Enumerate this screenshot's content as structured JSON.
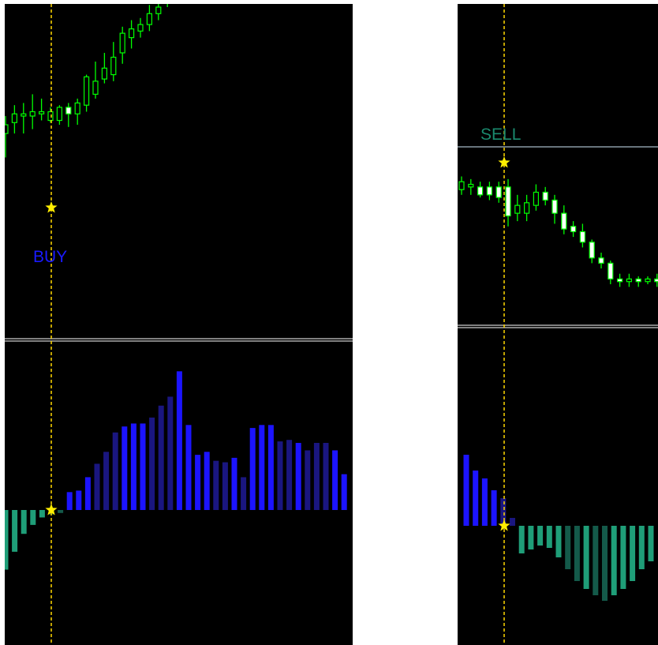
{
  "colors": {
    "background": "#000000",
    "candle": "#00ff00",
    "candle_body_bull": "#000000",
    "candle_body_bear": "#ffffff",
    "signal_line": "#ffd700",
    "signal_star": "#ffee00",
    "buy_label": "#1a1aff",
    "sell_label": "#1a8a6e",
    "hist_pos_strong": "#1c14ff",
    "hist_pos_weak": "#1a1680",
    "hist_neg_strong": "#1f9e78",
    "hist_neg_weak": "#145a4a",
    "separator": "#cccccc",
    "level_line": "#8a9aa6"
  },
  "signals": {
    "buy": {
      "label": "BUY"
    },
    "sell": {
      "label": "SELL"
    }
  },
  "chart_data": [
    {
      "id": "buy-price",
      "type": "candlestick",
      "signal_index": 7,
      "ylim": [
        0,
        100
      ],
      "candles": [
        [
          42,
          46,
          31,
          50
        ],
        [
          47,
          51,
          42,
          55
        ],
        [
          50,
          51,
          42,
          56
        ],
        [
          50,
          52,
          44,
          60
        ],
        [
          51,
          52,
          48,
          58
        ],
        [
          48,
          52,
          47,
          54
        ],
        [
          48,
          54,
          46,
          55
        ],
        [
          54,
          51,
          45,
          56
        ],
        [
          51,
          56,
          46,
          58
        ],
        [
          55,
          68,
          52,
          69
        ],
        [
          60,
          66,
          58,
          75
        ],
        [
          67,
          72,
          65,
          79
        ],
        [
          69,
          77,
          66,
          84
        ],
        [
          79,
          88,
          74,
          91
        ],
        [
          86,
          90,
          81,
          94
        ],
        [
          89,
          92,
          86,
          95
        ],
        [
          92,
          97,
          89,
          101
        ],
        [
          97,
          100,
          94,
          103
        ],
        [
          102,
          103,
          100,
          104
        ]
      ]
    },
    {
      "id": "buy-histogram",
      "type": "bar",
      "signal_index": 6,
      "ylim": [
        -80,
        100
      ],
      "values": [
        -40,
        -28,
        -16,
        -10,
        -5,
        -3,
        -2,
        12,
        13,
        22,
        31,
        39,
        52,
        56,
        58,
        58,
        62,
        70,
        76,
        93,
        57,
        37,
        39,
        33,
        32,
        35,
        22,
        55,
        57,
        57,
        46,
        47,
        45,
        40,
        45,
        45,
        40,
        24
      ],
      "strength": [
        "s",
        "s",
        "s",
        "s",
        "s",
        "w",
        "w",
        "s",
        "s",
        "s",
        "w",
        "w",
        "w",
        "s",
        "s",
        "s",
        "w",
        "w",
        "w",
        "s",
        "s",
        "s",
        "s",
        "w",
        "w",
        "s",
        "w",
        "s",
        "s",
        "s",
        "w",
        "w",
        "s",
        "w",
        "w",
        "w",
        "s",
        "s"
      ]
    },
    {
      "id": "sell-price",
      "type": "candlestick",
      "signal_index": 5,
      "level": 55,
      "ylim": [
        0,
        100
      ],
      "candles": [
        [
          48,
          51,
          46,
          53
        ],
        [
          49,
          50,
          46,
          52
        ],
        [
          49,
          46,
          45,
          51
        ],
        [
          49,
          46,
          44,
          51
        ],
        [
          49,
          45,
          43,
          51
        ],
        [
          49,
          38,
          34,
          52
        ],
        [
          39,
          42,
          36,
          46
        ],
        [
          39,
          43,
          36,
          46
        ],
        [
          42,
          47,
          40,
          50
        ],
        [
          47,
          44,
          42,
          49
        ],
        [
          44,
          39,
          35,
          46
        ],
        [
          39,
          33,
          31,
          42
        ],
        [
          34,
          32,
          30,
          36
        ],
        [
          32,
          28,
          26,
          35
        ],
        [
          28,
          22,
          20,
          29
        ],
        [
          22,
          20,
          18,
          24
        ],
        [
          20,
          14,
          12,
          21
        ],
        [
          14,
          13,
          11,
          16
        ],
        [
          13,
          14,
          11,
          16
        ],
        [
          14,
          13,
          11,
          15
        ],
        [
          13,
          14,
          12,
          15
        ],
        [
          14,
          13,
          11,
          16
        ],
        [
          14,
          25,
          12,
          26
        ]
      ]
    },
    {
      "id": "sell-histogram",
      "type": "bar",
      "signal_index": 5,
      "ylim": [
        -100,
        100
      ],
      "values": [
        90,
        70,
        60,
        45,
        35,
        10,
        -35,
        -30,
        -25,
        -28,
        -40,
        -55,
        -70,
        -80,
        -88,
        -95,
        -88,
        -80,
        -70,
        -55,
        -45
      ],
      "strength": [
        "s",
        "s",
        "s",
        "s",
        "w",
        "w",
        "s",
        "s",
        "s",
        "s",
        "s",
        "w",
        "w",
        "s",
        "w",
        "w",
        "s",
        "s",
        "s",
        "s",
        "s"
      ]
    }
  ]
}
